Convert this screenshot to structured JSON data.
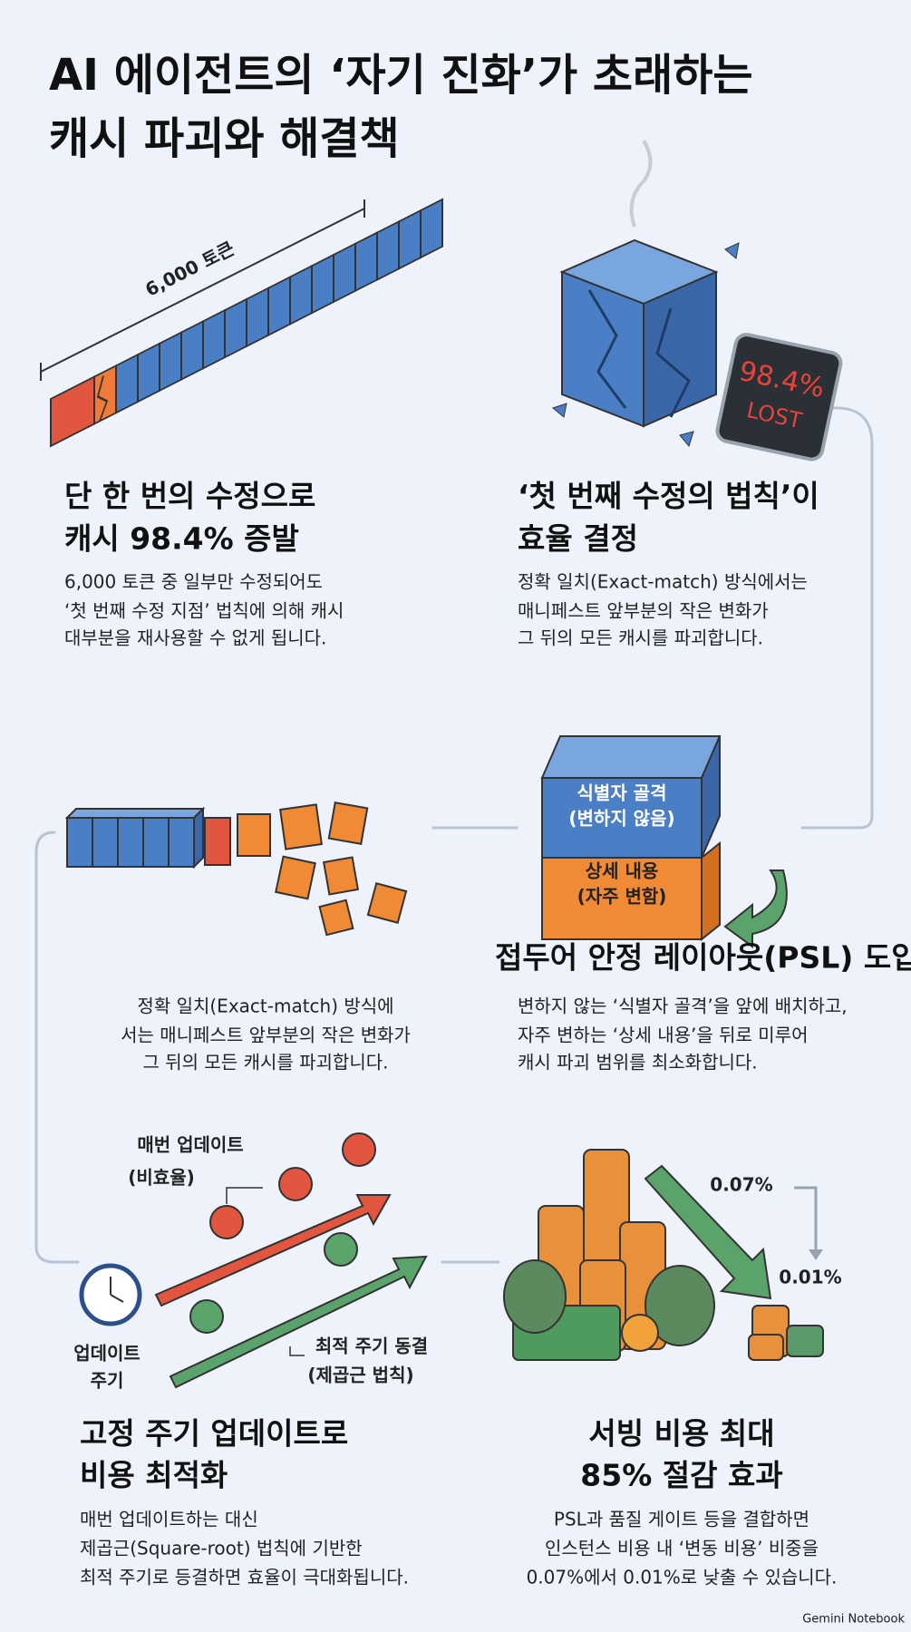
{
  "header": {
    "title_lines": [
      "AI 에이전트의 ‘자기 진화’가 초래하는",
      "캐시 파괴와 해결책"
    ]
  },
  "panels": [
    {
      "illustration_labels": [
        "6,000 토큰"
      ],
      "heading_lines": [
        "단 한 번의 수정으로",
        "캐시 98.4% 증발"
      ],
      "body_lines": [
        "6,000 토큰 중 일부만 수정되어도",
        "‘첫 번째 수정 지점’ 법칙에 의해 캐시",
        "대부분을 재사용할 수 없게 됩니다."
      ]
    },
    {
      "illustration_labels": [
        "98.4%",
        "LOST"
      ],
      "heading_lines": [
        "‘첫 번째 수정의 법칙’이",
        "효율 결정"
      ],
      "body_lines": [
        "정확 일치(Exact-match) 방식에서는",
        "매니페스트 앞부분의 작은 변화가",
        "그 뒤의 모든 캐시를 파괴합니다."
      ]
    },
    {
      "body_lines": [
        "정확 일치(Exact-match) 방식에",
        "서는 매니페스트 앞부분의 작은 변화가",
        "그 뒤의 모든 캐시를 파괴합니다."
      ]
    },
    {
      "illustration_labels": [
        "식별자 골격",
        "(변하지 않음)",
        "상세 내용",
        "(자주 변함)"
      ],
      "heading_lines": [
        "접두어 안정 레이아웃(PSL) 도입"
      ],
      "body_lines": [
        "변하지 않는 ‘식별자 골격’을 앞에 배치하고,",
        "자주 변하는 ‘상세 내용’을 뒤로 미루어",
        "캐시 파괴 범위를 최소화합니다."
      ]
    },
    {
      "illustration_labels": [
        "매번 업데이트",
        "(비효율)",
        "업데이트",
        "주기",
        "최적 주기 동결",
        "(제곱근 법칙)"
      ],
      "heading_lines": [
        "고정 주기 업데이트로",
        "비용 최적화"
      ],
      "body_lines": [
        "매번 업데이트하는 대신",
        "제곱근(Square-root) 법칙에 기반한",
        "최적 주기로 등결하면 효율이 극대화됩니다."
      ]
    },
    {
      "illustration_labels": [
        "0.07%",
        "0.01%"
      ],
      "heading_lines": [
        "서빙 비용 최대",
        "85% 절감 효과"
      ],
      "body_lines": [
        "PSL과 품질 게이트 등을 결합하면",
        "인스턴스 비용 내 ‘변동 비용’ 비중을",
        "0.07%에서 0.01%로 낮출 수 있습니다."
      ]
    }
  ],
  "footer": {
    "brand": "Gemini Notebook"
  }
}
